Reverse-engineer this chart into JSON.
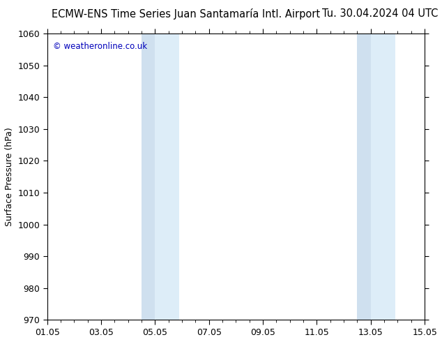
{
  "title_left": "ECMW-ENS Time Series Juan Santamaría Intl. Airport",
  "title_right": "Tu. 30.04.2024 04 UTC",
  "ylabel": "Surface Pressure (hPa)",
  "ylim": [
    970,
    1060
  ],
  "yticks": [
    970,
    980,
    990,
    1000,
    1010,
    1020,
    1030,
    1040,
    1050,
    1060
  ],
  "xlim_start": 0,
  "xlim_end": 14,
  "xtick_positions": [
    0,
    2,
    4,
    6,
    8,
    10,
    12,
    14
  ],
  "xtick_labels": [
    "01.05",
    "03.05",
    "05.05",
    "07.05",
    "09.05",
    "11.05",
    "13.05",
    "15.05"
  ],
  "shaded_bands": [
    {
      "xmin": 3.5,
      "xmax": 4.0,
      "color": "#cfe0ef"
    },
    {
      "xmin": 4.0,
      "xmax": 4.9,
      "color": "#ddedf8"
    },
    {
      "xmin": 11.5,
      "xmax": 12.0,
      "color": "#cfe0ef"
    },
    {
      "xmin": 12.0,
      "xmax": 12.9,
      "color": "#ddedf8"
    }
  ],
  "background_color": "#ffffff",
  "plot_bg_color": "#ffffff",
  "watermark_text": "© weatheronline.co.uk",
  "watermark_color": "#0000bb",
  "title_fontsize": 10.5,
  "axis_label_fontsize": 9,
  "tick_fontsize": 9
}
